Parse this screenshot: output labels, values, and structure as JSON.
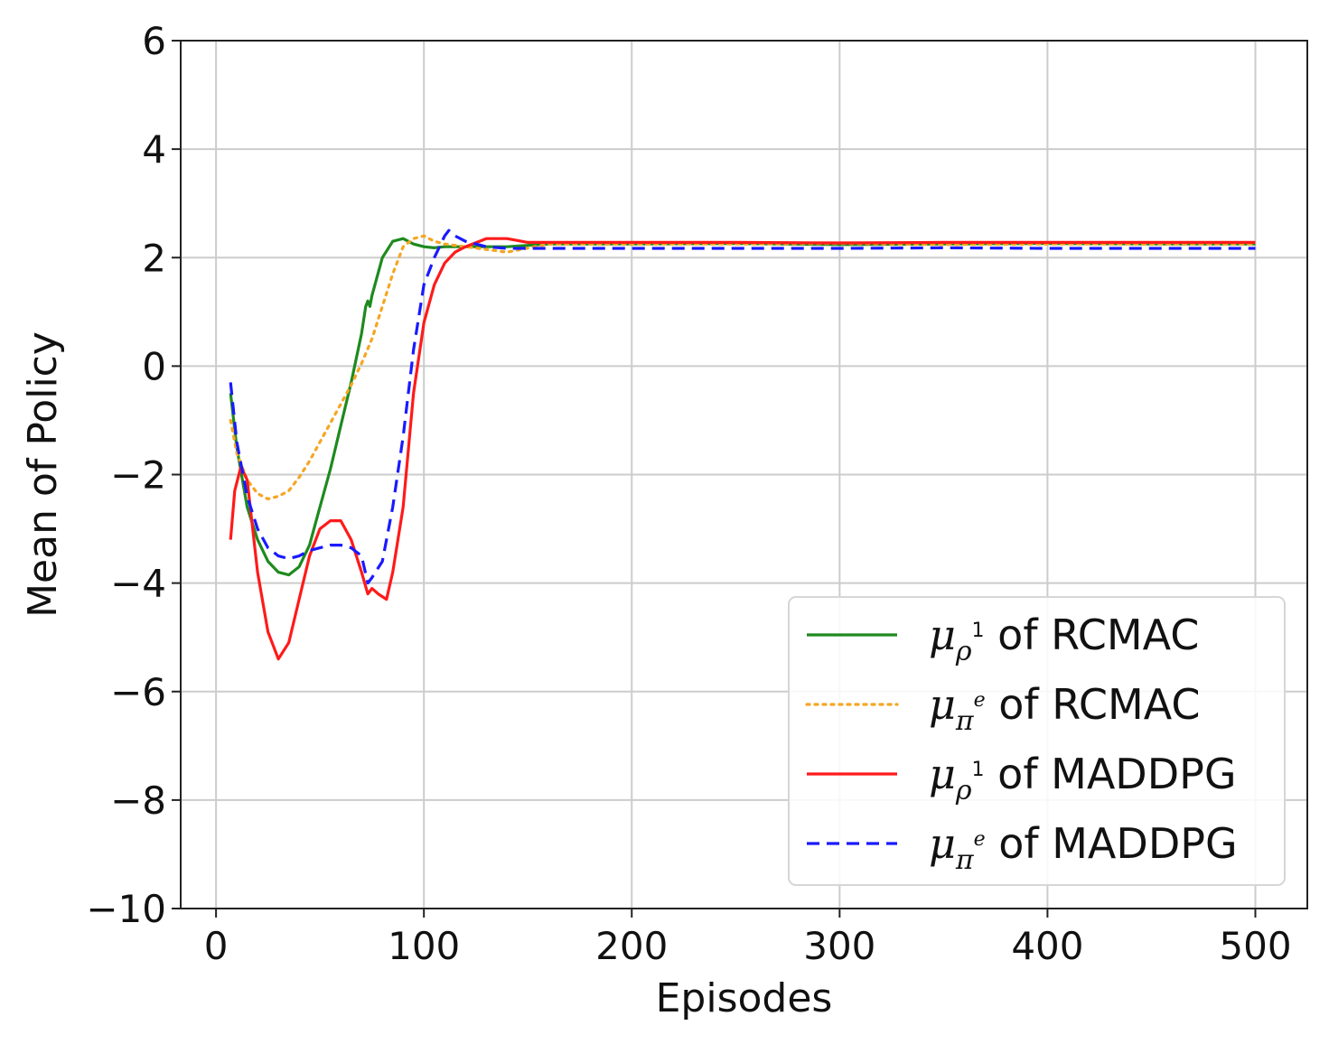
{
  "chart_data": {
    "type": "line",
    "title": "",
    "xlabel": "Episodes",
    "ylabel": "Mean of Policy",
    "xlim": [
      -17,
      525
    ],
    "ylim": [
      -10,
      6
    ],
    "xticks": [
      0,
      100,
      200,
      300,
      400,
      500
    ],
    "xtick_labels": [
      "0",
      "100",
      "200",
      "300",
      "400",
      "500"
    ],
    "yticks": [
      -10,
      -8,
      -6,
      -4,
      -2,
      0,
      2,
      4,
      6
    ],
    "ytick_labels": [
      "−10",
      "−8",
      "−6",
      "−4",
      "−2",
      "0",
      "2",
      "4",
      "6"
    ],
    "grid": true,
    "legend_position": "bottom-right",
    "series": [
      {
        "name": "μρ¹ of RCMAC",
        "label_symbol": "μ",
        "label_sub": "ρ",
        "label_sup": "1",
        "label_suffix": " of RCMAC",
        "color": "#1e8a1e",
        "style": "solid",
        "x": [
          7,
          10,
          15,
          20,
          25,
          30,
          35,
          40,
          45,
          50,
          55,
          60,
          65,
          70,
          72,
          73,
          74,
          75,
          80,
          85,
          90,
          95,
          100,
          105,
          110,
          120,
          140,
          160,
          200,
          250,
          300,
          350,
          400,
          450,
          500
        ],
        "y": [
          -0.5,
          -1.5,
          -2.6,
          -3.2,
          -3.6,
          -3.8,
          -3.85,
          -3.7,
          -3.3,
          -2.6,
          -1.9,
          -1.1,
          -0.3,
          0.6,
          1.1,
          1.2,
          1.1,
          1.3,
          2.0,
          2.3,
          2.35,
          2.25,
          2.2,
          2.18,
          2.2,
          2.2,
          2.2,
          2.25,
          2.25,
          2.26,
          2.24,
          2.25,
          2.26,
          2.25,
          2.25
        ]
      },
      {
        "name": "μπᵉ of RCMAC",
        "label_symbol": "μ",
        "label_sub": "π",
        "label_sup": "e",
        "label_suffix": " of RCMAC",
        "color": "#f5a623",
        "style": "dotted",
        "x": [
          7,
          10,
          15,
          20,
          25,
          30,
          35,
          40,
          45,
          50,
          55,
          60,
          65,
          70,
          75,
          80,
          85,
          90,
          95,
          100,
          105,
          110,
          120,
          140,
          160,
          200,
          250,
          300,
          350,
          400,
          450,
          500
        ],
        "y": [
          -1.0,
          -1.6,
          -2.1,
          -2.35,
          -2.45,
          -2.4,
          -2.3,
          -2.05,
          -1.75,
          -1.4,
          -1.05,
          -0.7,
          -0.35,
          0.05,
          0.5,
          1.1,
          1.7,
          2.2,
          2.35,
          2.4,
          2.3,
          2.25,
          2.2,
          2.1,
          2.25,
          2.25,
          2.25,
          2.26,
          2.24,
          2.25,
          2.25,
          2.25
        ]
      },
      {
        "name": "μρ¹ of MADDPG",
        "label_symbol": "μ",
        "label_sub": "ρ",
        "label_sup": "1",
        "label_suffix": " of MADDPG",
        "color": "#ff1a1a",
        "style": "solid",
        "x": [
          7,
          9,
          12,
          15,
          20,
          25,
          30,
          35,
          40,
          45,
          50,
          55,
          60,
          65,
          70,
          73,
          75,
          78,
          82,
          85,
          90,
          95,
          100,
          105,
          110,
          115,
          120,
          130,
          140,
          150,
          200,
          250,
          300,
          350,
          400,
          450,
          500
        ],
        "y": [
          -3.2,
          -2.3,
          -1.85,
          -2.1,
          -3.8,
          -4.9,
          -5.4,
          -5.1,
          -4.3,
          -3.5,
          -3.0,
          -2.85,
          -2.85,
          -3.2,
          -3.8,
          -4.2,
          -4.1,
          -4.2,
          -4.3,
          -3.8,
          -2.6,
          -0.5,
          0.8,
          1.5,
          1.9,
          2.1,
          2.2,
          2.35,
          2.35,
          2.28,
          2.28,
          2.28,
          2.27,
          2.28,
          2.28,
          2.28,
          2.28
        ]
      },
      {
        "name": "μπᵉ of MADDPG",
        "label_symbol": "μ",
        "label_sub": "π",
        "label_sup": "e",
        "label_suffix": " of MADDPG",
        "color": "#1a1aff",
        "style": "dashed",
        "x": [
          7,
          10,
          15,
          20,
          25,
          30,
          35,
          40,
          45,
          50,
          55,
          60,
          65,
          70,
          73,
          75,
          80,
          85,
          90,
          95,
          100,
          105,
          110,
          112,
          115,
          120,
          130,
          140,
          150,
          200,
          250,
          300,
          350,
          400,
          450,
          500
        ],
        "y": [
          -0.3,
          -1.4,
          -2.4,
          -3.0,
          -3.35,
          -3.5,
          -3.55,
          -3.5,
          -3.4,
          -3.35,
          -3.3,
          -3.3,
          -3.35,
          -3.5,
          -4.0,
          -3.9,
          -3.6,
          -2.6,
          -1.3,
          0.3,
          1.5,
          2.0,
          2.4,
          2.5,
          2.4,
          2.3,
          2.2,
          2.17,
          2.17,
          2.17,
          2.17,
          2.17,
          2.18,
          2.17,
          2.17,
          2.17
        ]
      }
    ]
  }
}
